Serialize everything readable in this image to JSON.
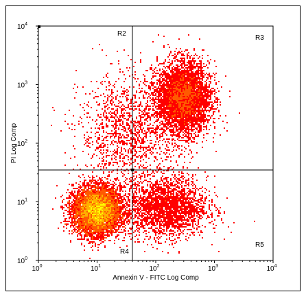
{
  "chart_data": {
    "type": "scatter",
    "title": "",
    "xlabel": "Annexin V - FITC Log Comp",
    "ylabel": "PI Log Comp",
    "xscale": "log",
    "yscale": "log",
    "xlim": [
      1,
      10000
    ],
    "ylim": [
      1,
      10000
    ],
    "x_ticks": [
      {
        "value": 1,
        "base": "10",
        "exp": "0"
      },
      {
        "value": 10,
        "base": "10",
        "exp": "1"
      },
      {
        "value": 100,
        "base": "10",
        "exp": "2"
      },
      {
        "value": 1000,
        "base": "10",
        "exp": "3"
      },
      {
        "value": 10000,
        "base": "10",
        "exp": "4"
      }
    ],
    "y_ticks": [
      {
        "value": 1,
        "base": "10",
        "exp": "0"
      },
      {
        "value": 10,
        "base": "10",
        "exp": "1"
      },
      {
        "value": 100,
        "base": "10",
        "exp": "2"
      },
      {
        "value": 1000,
        "base": "10",
        "exp": "3"
      },
      {
        "value": 10000,
        "base": "10",
        "exp": "4"
      }
    ],
    "quadrant_gate": {
      "x": 40,
      "y": 35
    },
    "regions": [
      {
        "label": "R2",
        "position": "upper-left"
      },
      {
        "label": "R3",
        "position": "upper-right"
      },
      {
        "label": "R4",
        "position": "lower-left"
      },
      {
        "label": "R5",
        "position": "lower-right"
      }
    ],
    "populations": [
      {
        "center_x": 10,
        "center_y": 7,
        "spread_x_decades": 0.2,
        "spread_y_decades": 0.2,
        "share": 0.62
      },
      {
        "center_x": 300,
        "center_y": 600,
        "spread_x_decades": 0.22,
        "spread_y_decades": 0.3,
        "share": 0.22
      },
      {
        "center_x": 150,
        "center_y": 8,
        "spread_x_decades": 0.35,
        "spread_y_decades": 0.25,
        "share": 0.1
      },
      {
        "center_x": 40,
        "center_y": 150,
        "spread_x_decades": 0.45,
        "spread_y_decades": 0.5,
        "share": 0.06
      }
    ],
    "density_colors": [
      "#ff0000",
      "#ff5a00",
      "#ffb000",
      "#ffff00",
      "#00c060",
      "#00a0ff",
      "#4000ff"
    ],
    "grid": false,
    "legend": "none"
  }
}
